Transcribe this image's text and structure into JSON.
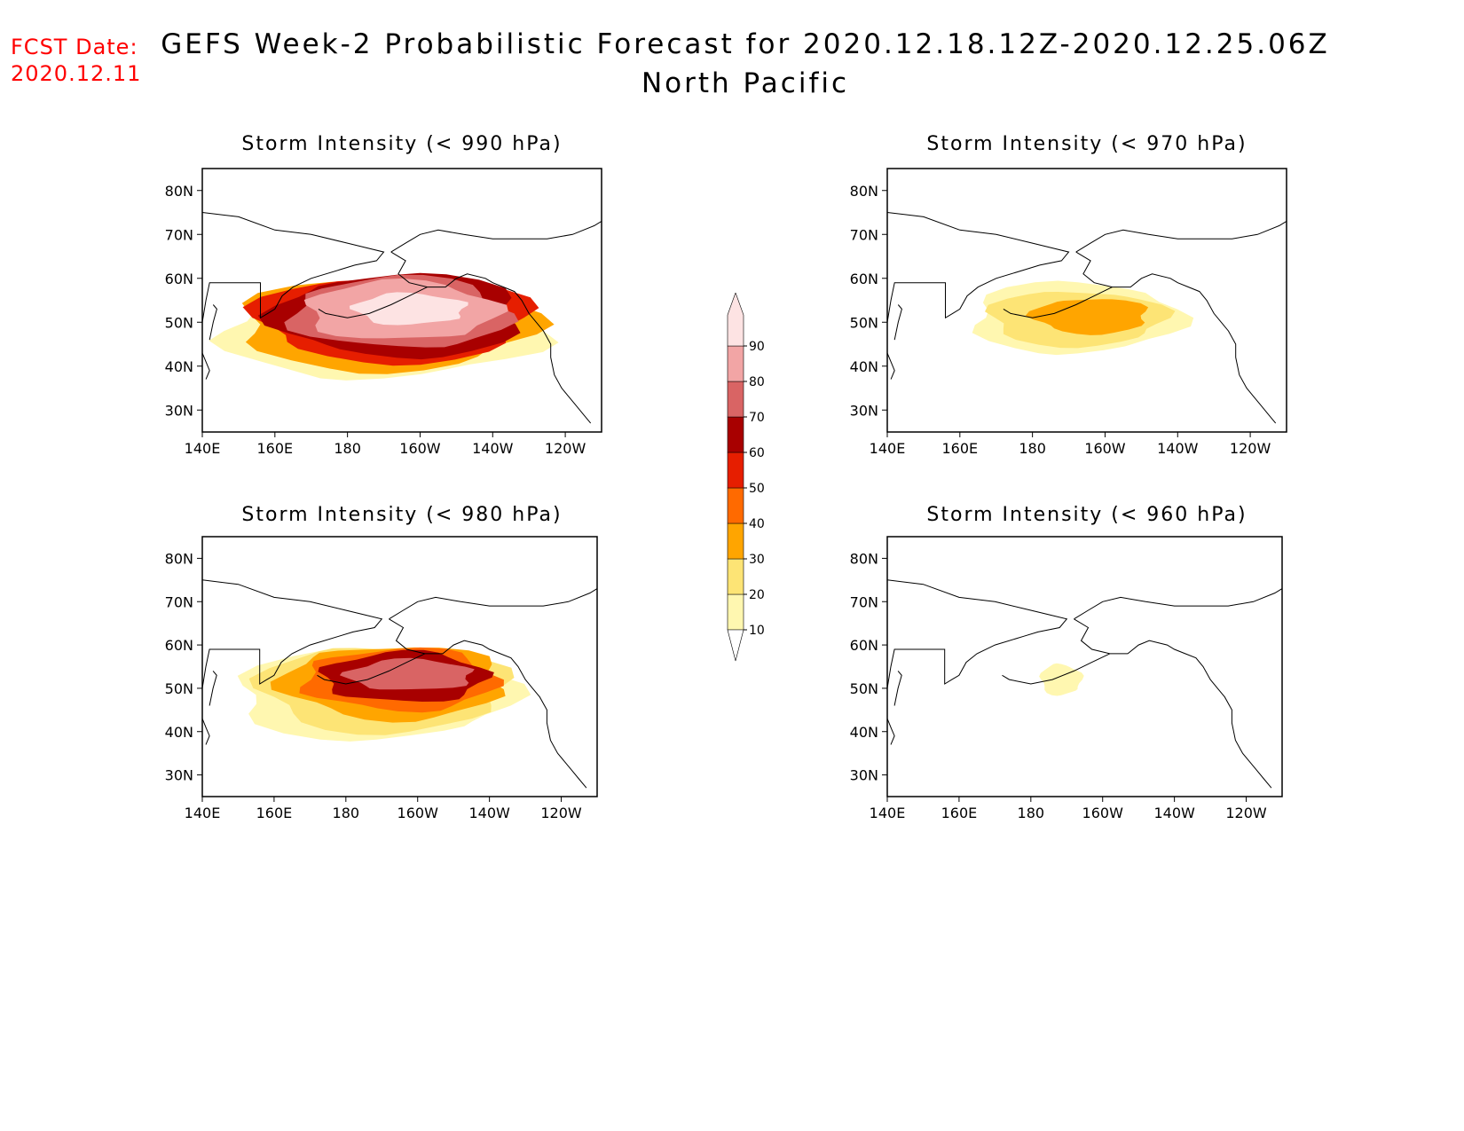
{
  "header": {
    "fcst_label": "FCST Date:",
    "fcst_date": "2020.12.11",
    "title": "GEFS Week-2 Probabilistic Forecast for 2020.12.18.12Z-2020.12.25.06Z",
    "subtitle": "North Pacific"
  },
  "axes": {
    "lon_ticks": [
      "140E",
      "160E",
      "180",
      "160W",
      "140W",
      "120W"
    ],
    "lat_ticks": [
      "80N",
      "70N",
      "60N",
      "50N",
      "40N",
      "30N"
    ]
  },
  "colorbar": {
    "levels": [
      "10",
      "20",
      "30",
      "40",
      "50",
      "60",
      "70",
      "80",
      "90"
    ],
    "colors": [
      "#fff7b0",
      "#fde475",
      "#ffa500",
      "#ff6a00",
      "#e61e00",
      "#a80000",
      "#d96464",
      "#f2a5a5",
      "#fde3e3"
    ]
  },
  "chart_data": [
    {
      "type": "heatmap",
      "title": "Storm Intensity (< 990 hPa)",
      "xlim": [
        "140E",
        "110W"
      ],
      "ylim": [
        25,
        85
      ],
      "regions": [
        {
          "level": 10,
          "lon": [
            140,
            240
          ],
          "lat": [
            36,
            60
          ]
        },
        {
          "level": 30,
          "lon": [
            145,
            237
          ],
          "lat": [
            38,
            61
          ]
        },
        {
          "level": 50,
          "lon": [
            150,
            235
          ],
          "lat": [
            40,
            62
          ]
        },
        {
          "level": 60,
          "lon": [
            155,
            232
          ],
          "lat": [
            41,
            62
          ]
        },
        {
          "level": 70,
          "lon": [
            160,
            228
          ],
          "lat": [
            43,
            61
          ]
        },
        {
          "level": 80,
          "lon": [
            165,
            225
          ],
          "lat": [
            45,
            60
          ]
        },
        {
          "level": 90,
          "lon": [
            180,
            215
          ],
          "lat": [
            49,
            57
          ]
        }
      ]
    },
    {
      "type": "heatmap",
      "title": "Storm Intensity (< 970 hPa)",
      "xlim": [
        "140E",
        "110W"
      ],
      "ylim": [
        25,
        85
      ],
      "regions": [
        {
          "level": 10,
          "lon": [
            160,
            225
          ],
          "lat": [
            42,
            60
          ]
        },
        {
          "level": 20,
          "lon": [
            165,
            220
          ],
          "lat": [
            44,
            58
          ]
        },
        {
          "level": 30,
          "lon": [
            178,
            214
          ],
          "lat": [
            47,
            56
          ]
        }
      ]
    },
    {
      "type": "heatmap",
      "title": "Storm Intensity (< 980 hPa)",
      "xlim": [
        "140E",
        "110W"
      ],
      "ylim": [
        25,
        85
      ],
      "regions": [
        {
          "level": 10,
          "lon": [
            145,
            232
          ],
          "lat": [
            37,
            60
          ]
        },
        {
          "level": 20,
          "lon": [
            152,
            230
          ],
          "lat": [
            39,
            61
          ]
        },
        {
          "level": 30,
          "lon": [
            158,
            228
          ],
          "lat": [
            42,
            61
          ]
        },
        {
          "level": 40,
          "lon": [
            164,
            225
          ],
          "lat": [
            44,
            60
          ]
        },
        {
          "level": 60,
          "lon": [
            170,
            222
          ],
          "lat": [
            46,
            59
          ]
        },
        {
          "level": 70,
          "lon": [
            178,
            218
          ],
          "lat": [
            49,
            57
          ]
        }
      ]
    },
    {
      "type": "heatmap",
      "title": "Storm Intensity (< 960 hPa)",
      "xlim": [
        "140E",
        "110W"
      ],
      "ylim": [
        25,
        85
      ],
      "regions": [
        {
          "level": 10,
          "lon": [
            182,
            195
          ],
          "lat": [
            48,
            56
          ]
        }
      ]
    }
  ]
}
